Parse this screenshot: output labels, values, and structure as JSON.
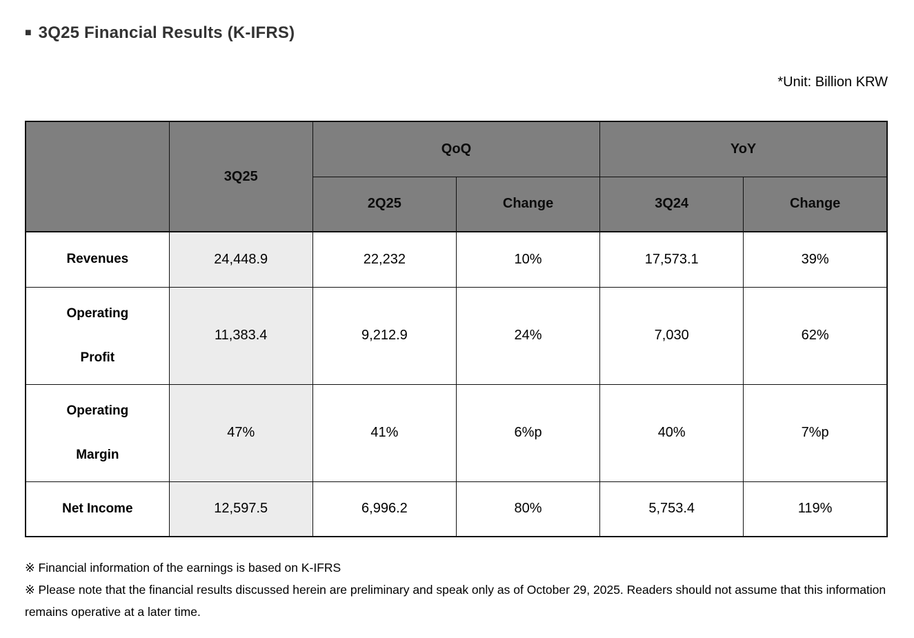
{
  "page": {
    "title_bullet": "■",
    "title": "3Q25 Financial Results (K-IFRS)",
    "unit_note": "*Unit: Billion KRW"
  },
  "table": {
    "header": {
      "period_label": "3Q25",
      "qoq_label": "QoQ",
      "yoy_label": "YoY",
      "qoq_cols": [
        "2Q25",
        "Change"
      ],
      "yoy_cols": [
        "3Q24",
        "Change"
      ]
    },
    "rows": [
      {
        "label_lines": [
          "Revenues"
        ],
        "q3_25": "24,448.9",
        "q2_25": "22,232",
        "qoq_change": "10%",
        "q3_24": "17,573.1",
        "yoy_change": "39%"
      },
      {
        "label_lines": [
          "Operating",
          "Profit"
        ],
        "q3_25": "11,383.4",
        "q2_25": "9,212.9",
        "qoq_change": "24%",
        "q3_24": "7,030",
        "yoy_change": "62%"
      },
      {
        "label_lines": [
          "Operating",
          "Margin"
        ],
        "q3_25": "47%",
        "q2_25": "41%",
        "qoq_change": "6%p",
        "q3_24": "40%",
        "yoy_change": "7%p"
      },
      {
        "label_lines": [
          "Net Income"
        ],
        "q3_25": "12,597.5",
        "q2_25": "6,996.2",
        "qoq_change": "80%",
        "q3_24": "5,753.4",
        "yoy_change": "119%"
      }
    ]
  },
  "footnotes": [
    "※ Financial information of the earnings is based on K-IFRS",
    "※ Please note that the financial results discussed herein are preliminary and speak only as of October 29, 2025. Readers should not assume that this information remains operative at a later time."
  ],
  "colors": {
    "header_bg": "#7f7f7f",
    "highlight_col_bg": "#ececec",
    "border": "#111111",
    "text": "#000000",
    "title_text": "#333333"
  }
}
